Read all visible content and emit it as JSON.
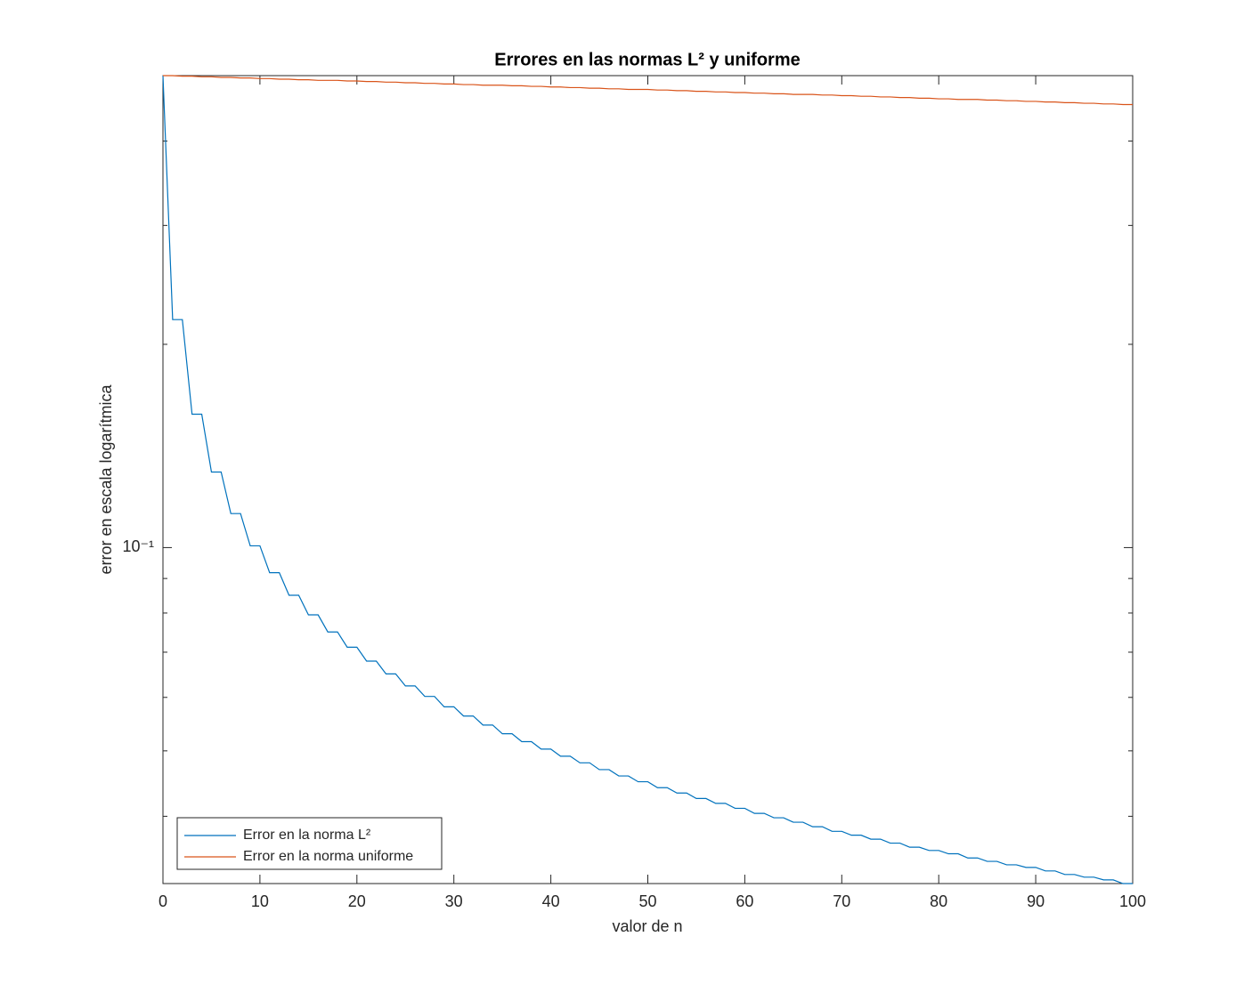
{
  "chart_data": {
    "type": "line",
    "title": "Errores en las normas L² y uniforme",
    "x_label": "valor de n",
    "y_label": "error en escala logarítmica",
    "x": [
      0,
      1,
      2,
      3,
      4,
      5,
      6,
      7,
      8,
      9,
      10,
      11,
      12,
      13,
      14,
      15,
      16,
      17,
      18,
      19,
      20,
      21,
      22,
      23,
      24,
      25,
      26,
      27,
      28,
      29,
      30,
      31,
      32,
      33,
      34,
      35,
      36,
      37,
      38,
      39,
      40,
      41,
      42,
      43,
      44,
      45,
      46,
      47,
      48,
      49,
      50,
      51,
      52,
      53,
      54,
      55,
      56,
      57,
      58,
      59,
      60,
      61,
      62,
      63,
      64,
      65,
      66,
      67,
      68,
      69,
      70,
      71,
      72,
      73,
      74,
      75,
      76,
      77,
      78,
      79,
      80,
      81,
      82,
      83,
      84,
      85,
      86,
      87,
      88,
      89,
      90,
      91,
      92,
      93,
      94,
      95,
      96,
      97,
      98,
      99,
      100
    ],
    "series": [
      {
        "name": "Error en la norma L²",
        "color": "#0072BD",
        "values": [
          0.5,
          0.2176,
          0.2176,
          0.1576,
          0.1576,
          0.1294,
          0.1294,
          0.1123,
          0.1123,
          0.1006,
          0.1006,
          0.0918,
          0.0918,
          0.085,
          0.085,
          0.0795,
          0.0795,
          0.075,
          0.075,
          0.0712,
          0.0712,
          0.0679,
          0.0679,
          0.065,
          0.065,
          0.0624,
          0.0624,
          0.0602,
          0.0602,
          0.0581,
          0.0581,
          0.0563,
          0.0563,
          0.0546,
          0.0546,
          0.053,
          0.053,
          0.0516,
          0.0516,
          0.0503,
          0.0503,
          0.0491,
          0.0491,
          0.048,
          0.048,
          0.0469,
          0.0469,
          0.0459,
          0.0459,
          0.045,
          0.045,
          0.0441,
          0.0441,
          0.0433,
          0.0433,
          0.0425,
          0.0425,
          0.0418,
          0.0418,
          0.0411,
          0.0411,
          0.0404,
          0.0404,
          0.0398,
          0.0398,
          0.0392,
          0.0392,
          0.0386,
          0.0386,
          0.038,
          0.038,
          0.0375,
          0.0375,
          0.037,
          0.037,
          0.0365,
          0.0365,
          0.036,
          0.036,
          0.0356,
          0.0356,
          0.0352,
          0.0352,
          0.0347,
          0.0347,
          0.0343,
          0.0343,
          0.0339,
          0.0339,
          0.0336,
          0.0336,
          0.0332,
          0.0332,
          0.0328,
          0.0328,
          0.0325,
          0.0325,
          0.0322,
          0.0322,
          0.0318,
          0.0318
        ]
      },
      {
        "name": "Error en la norma uniforme",
        "color": "#D95319",
        "values": [
          0.5,
          0.5,
          0.499,
          0.499,
          0.498,
          0.498,
          0.497,
          0.497,
          0.496,
          0.496,
          0.495,
          0.495,
          0.494,
          0.494,
          0.493,
          0.493,
          0.492,
          0.492,
          0.492,
          0.491,
          0.491,
          0.49,
          0.49,
          0.489,
          0.489,
          0.488,
          0.488,
          0.487,
          0.487,
          0.486,
          0.486,
          0.485,
          0.485,
          0.484,
          0.484,
          0.484,
          0.483,
          0.483,
          0.482,
          0.482,
          0.481,
          0.481,
          0.48,
          0.48,
          0.479,
          0.479,
          0.478,
          0.478,
          0.477,
          0.477,
          0.477,
          0.476,
          0.476,
          0.475,
          0.475,
          0.474,
          0.474,
          0.473,
          0.473,
          0.472,
          0.472,
          0.471,
          0.471,
          0.47,
          0.47,
          0.469,
          0.469,
          0.469,
          0.468,
          0.468,
          0.467,
          0.467,
          0.466,
          0.466,
          0.465,
          0.465,
          0.464,
          0.464,
          0.463,
          0.463,
          0.462,
          0.462,
          0.461,
          0.461,
          0.461,
          0.46,
          0.46,
          0.459,
          0.459,
          0.458,
          0.458,
          0.457,
          0.457,
          0.456,
          0.456,
          0.455,
          0.455,
          0.454,
          0.454,
          0.453,
          0.453
        ]
      }
    ],
    "xlim": [
      0,
      100
    ],
    "xticks": [
      0,
      10,
      20,
      30,
      40,
      50,
      60,
      70,
      80,
      90,
      100
    ],
    "ylim": [
      0.0318,
      0.5
    ],
    "yticks": [
      {
        "value": 0.1,
        "label": "10⁻¹"
      }
    ],
    "yminor_ticks": [
      0.04,
      0.05,
      0.06,
      0.07,
      0.08,
      0.09,
      0.2,
      0.3,
      0.4
    ],
    "y_log": true,
    "grid": false,
    "legend_position": "lower left"
  }
}
